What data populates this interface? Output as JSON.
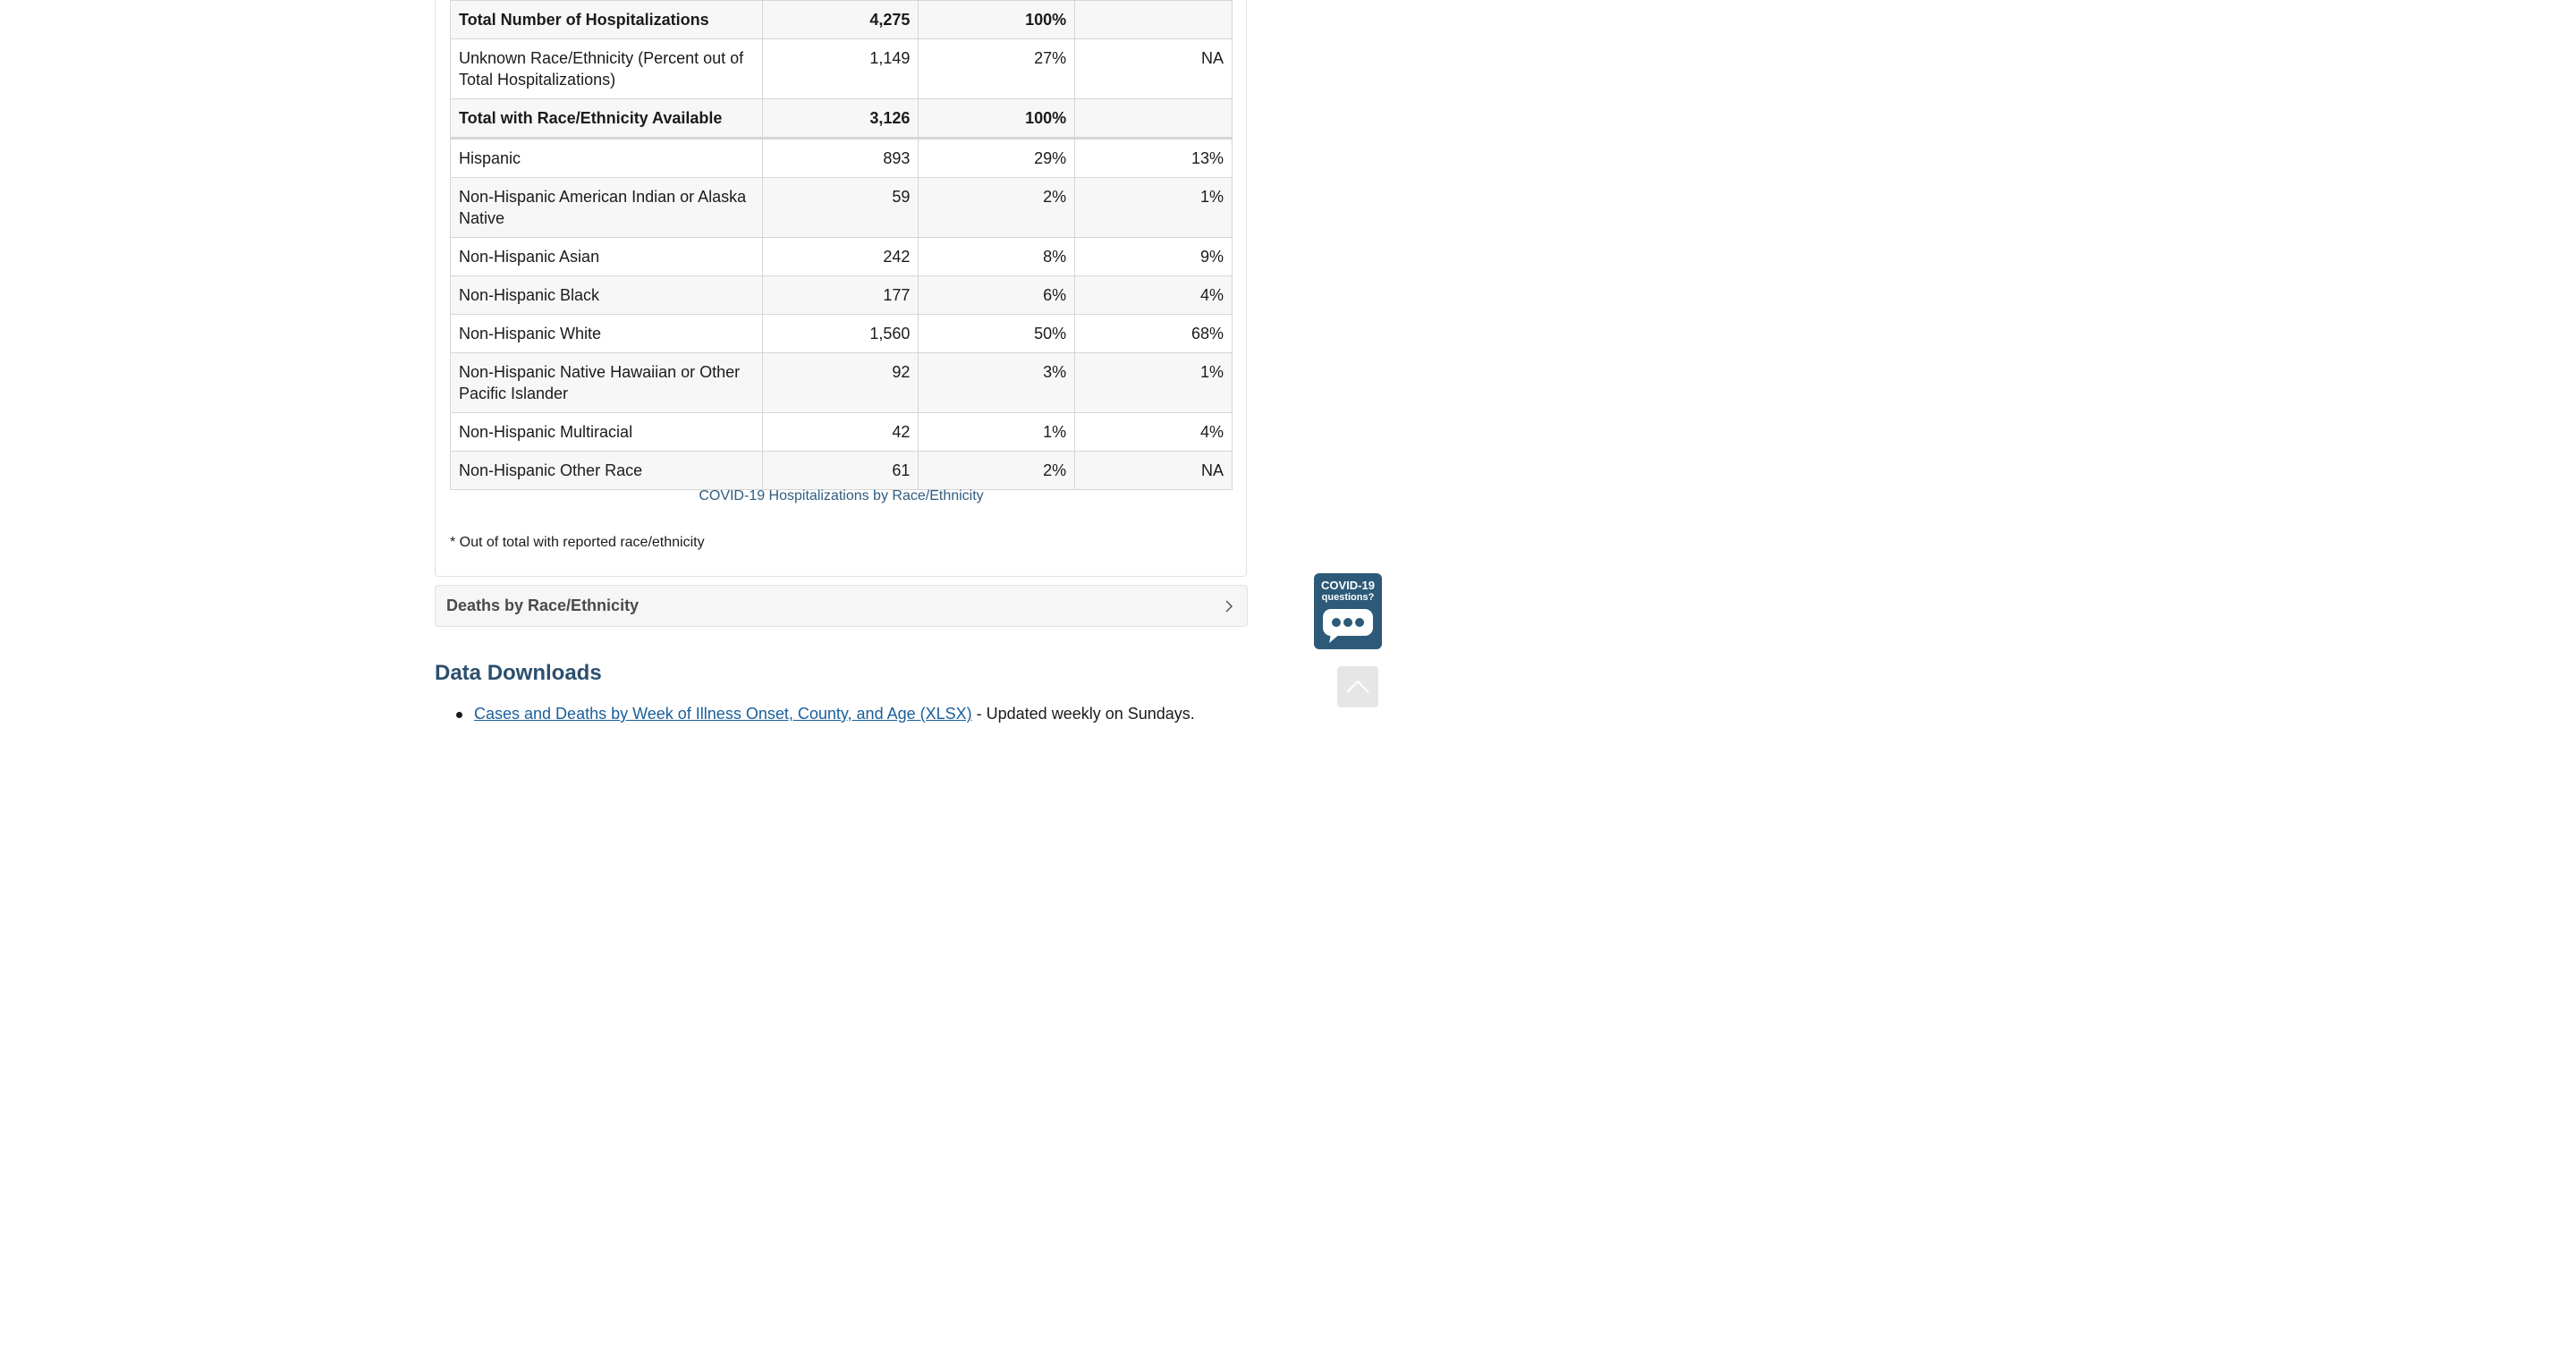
{
  "table": {
    "rows": [
      {
        "label": "Total Number of Hospitalizations",
        "count": "4,275",
        "percent": "100%",
        "population": "",
        "style": "shade bold"
      },
      {
        "label": "Unknown Race/Ethnicity (Percent out of Total Hospitalizations)",
        "count": "1,149",
        "percent": "27%",
        "population": "NA",
        "style": "white"
      },
      {
        "label": "Total with Race/Ethnicity Available",
        "count": "3,126",
        "percent": "100%",
        "population": "",
        "style": "shade bold"
      },
      {
        "label": "Hispanic",
        "count": "893",
        "percent": "29%",
        "population": "13%",
        "style": "white gap"
      },
      {
        "label": "Non-Hispanic American Indian or Alaska Native",
        "count": "59",
        "percent": "2%",
        "population": "1%",
        "style": "shade"
      },
      {
        "label": "Non-Hispanic Asian",
        "count": "242",
        "percent": "8%",
        "population": "9%",
        "style": "white"
      },
      {
        "label": "Non-Hispanic Black",
        "count": "177",
        "percent": "6%",
        "population": "4%",
        "style": "shade"
      },
      {
        "label": "Non-Hispanic White",
        "count": "1,560",
        "percent": "50%",
        "population": "68%",
        "style": "white"
      },
      {
        "label": "Non-Hispanic Native Hawaiian or Other Pacific Islander",
        "count": "92",
        "percent": "3%",
        "population": "1%",
        "style": "shade"
      },
      {
        "label": "Non-Hispanic Multiracial",
        "count": "42",
        "percent": "1%",
        "population": "4%",
        "style": "white"
      },
      {
        "label": "Non-Hispanic Other Race",
        "count": "61",
        "percent": "2%",
        "population": "NA",
        "style": "shade"
      }
    ],
    "caption": "COVID-19 Hospitalizations by Race/Ethnicity",
    "footnote": "* Out of total with reported race/ethnicity"
  },
  "accordion": {
    "deaths_title": "Deaths by Race/Ethnicity",
    "icon": "chevron-right-icon"
  },
  "downloads": {
    "heading": "Data Downloads",
    "items": [
      {
        "link_text": "Cases and Deaths by Week of Illness Onset, County, and Age (XLSX)",
        "suffix": " - Updated weekly on Sundays."
      }
    ]
  },
  "chat_widget": {
    "line1": "COVID-19",
    "line2": "questions?",
    "icon": "chat-bubble-icon"
  },
  "back_to_top": {
    "icon": "chevron-up-icon"
  },
  "colors": {
    "heading": "#2c4f6e",
    "link": "#1b5e9b",
    "caption": "#2f5b80",
    "widget": "#2c5a78"
  }
}
